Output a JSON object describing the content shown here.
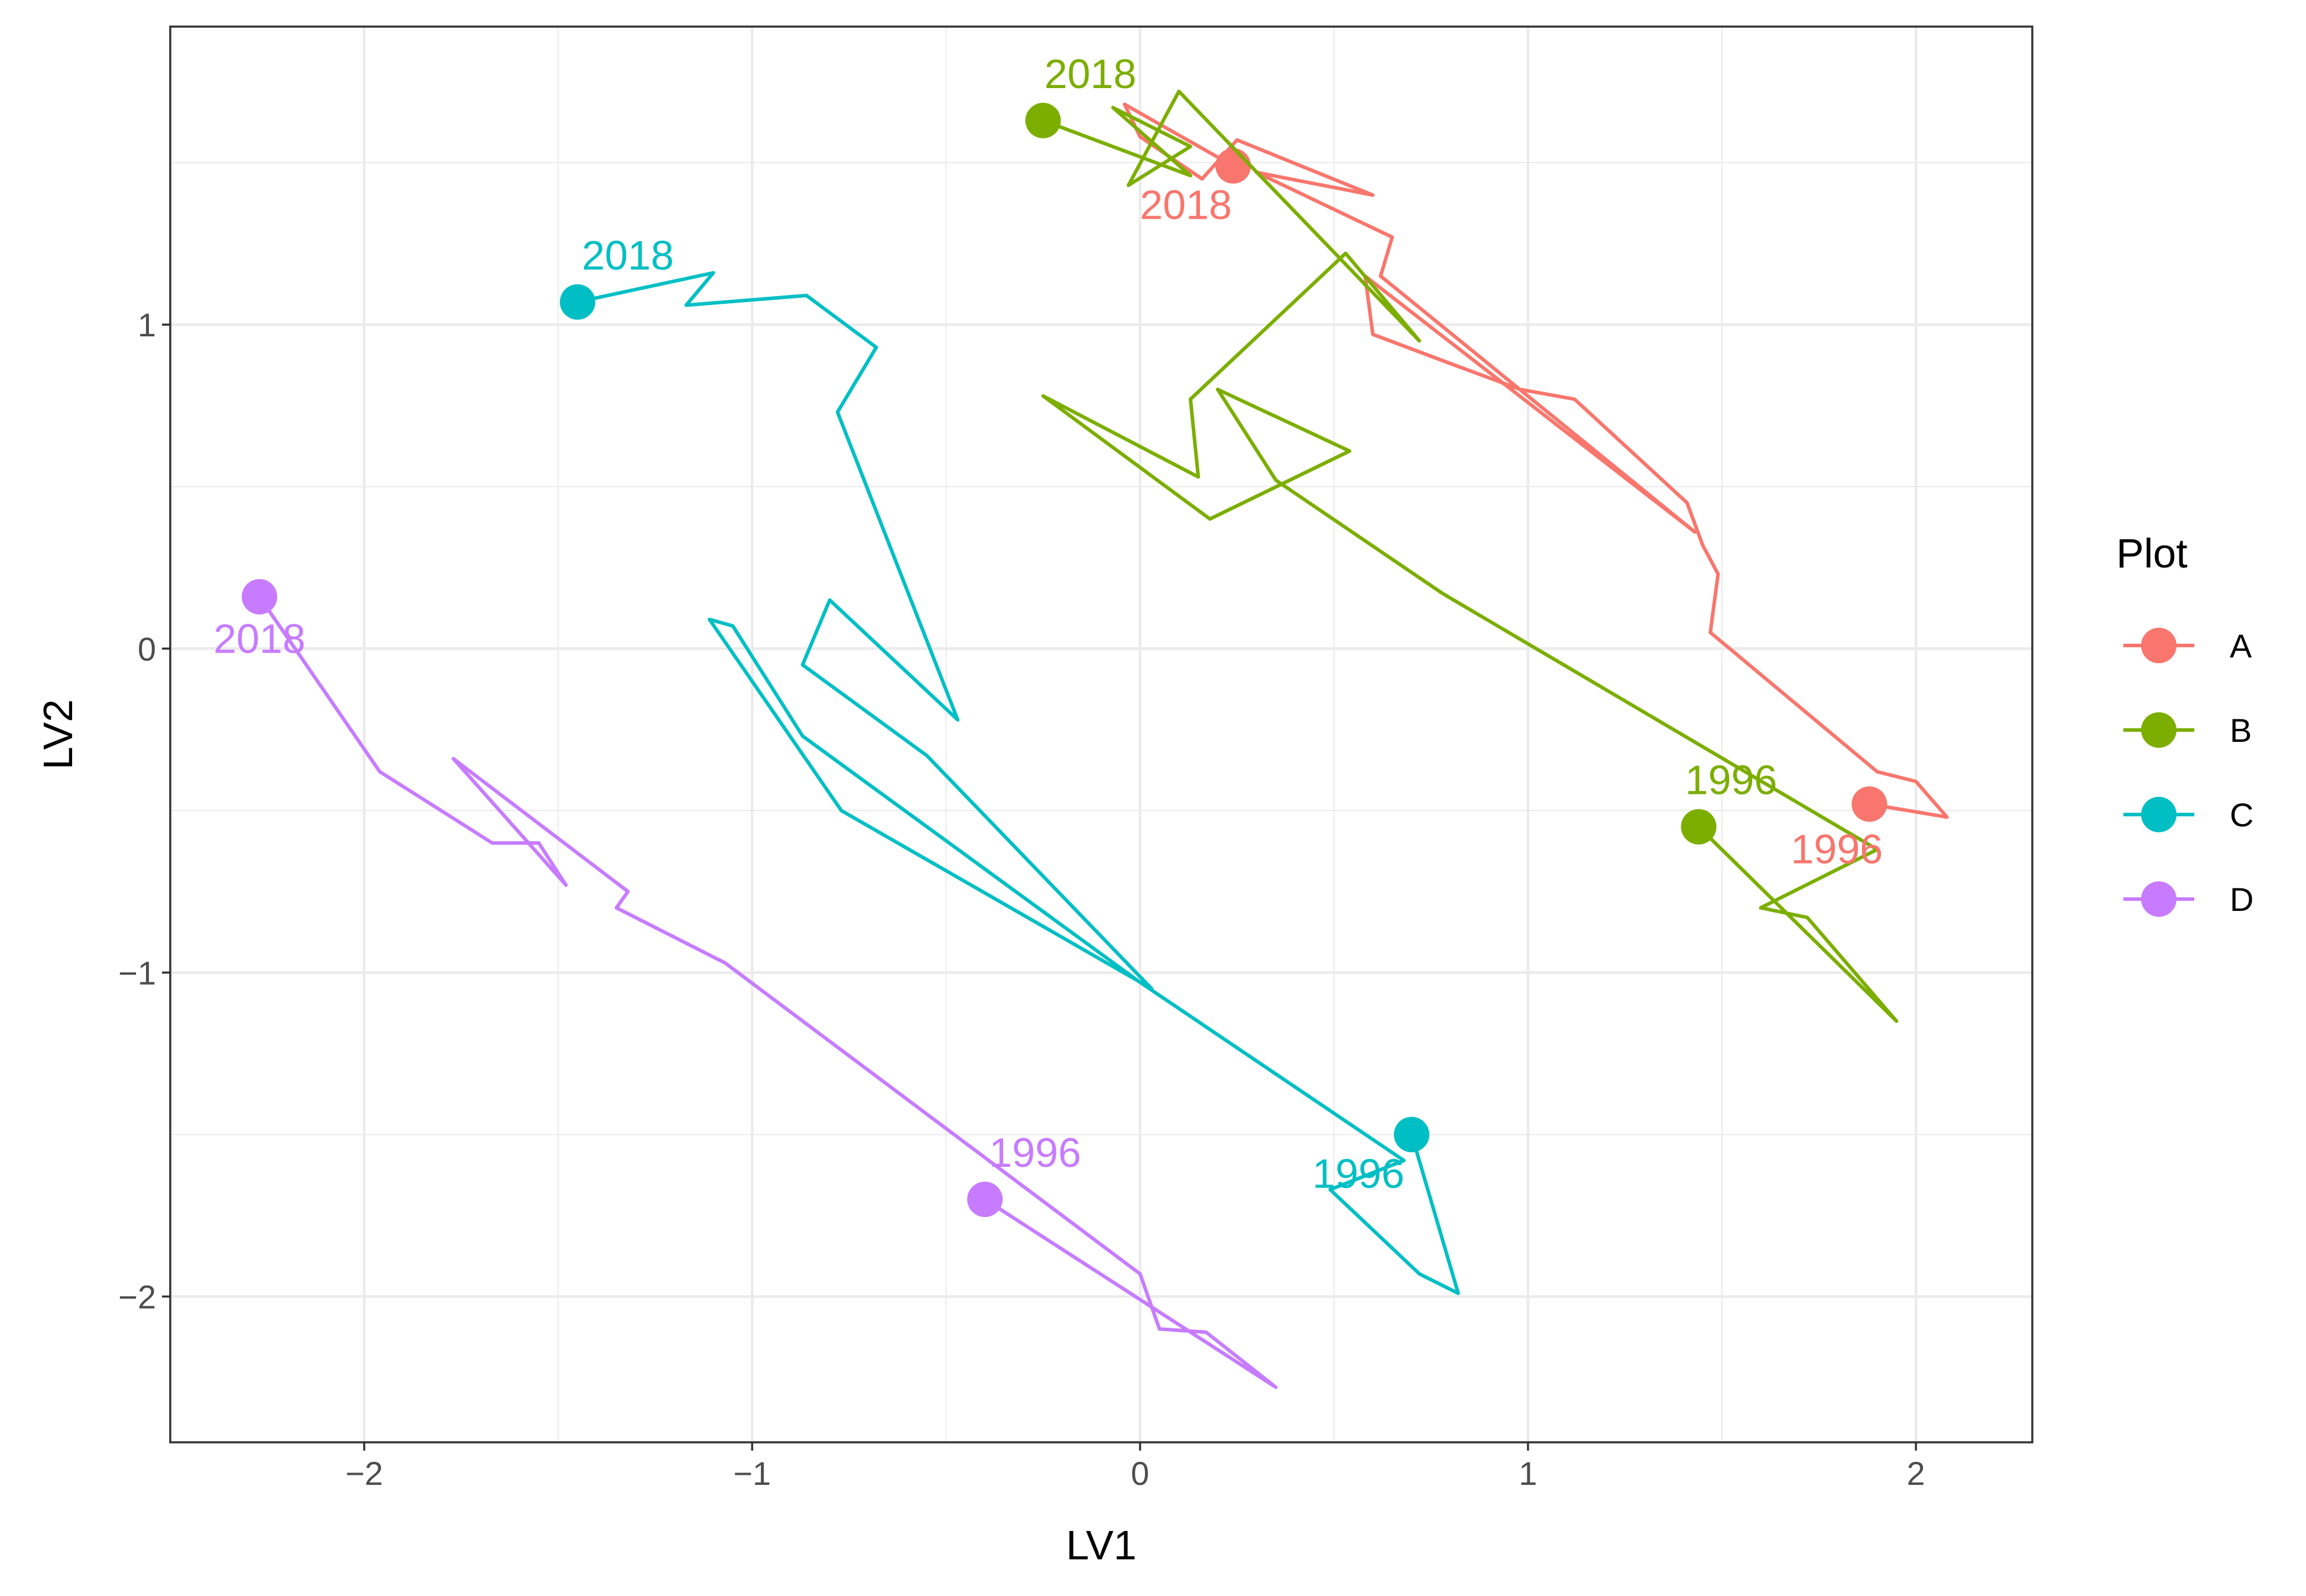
{
  "chart_data": {
    "type": "line",
    "title": "",
    "xlabel": "LV1",
    "ylabel": "LV2",
    "xlim": [
      -2.5,
      2.3
    ],
    "ylim": [
      -2.45,
      1.92
    ],
    "x_ticks": [
      -2,
      -1,
      0,
      1,
      2
    ],
    "y_ticks": [
      -2,
      -1,
      0,
      1
    ],
    "x_tick_labels": [
      "−2",
      "−1",
      "0",
      "1",
      "2"
    ],
    "y_tick_labels": [
      "−2",
      "−1",
      "0",
      "1"
    ],
    "grid": true,
    "legend": {
      "title": "Plot",
      "placement": "right",
      "entries": [
        "A",
        "B",
        "C",
        "D"
      ]
    },
    "series": [
      {
        "name": "A",
        "color": "#F8766D",
        "start_year": "1996",
        "end_year": "2018",
        "points": [
          [
            1.88,
            -0.48
          ],
          [
            2.08,
            -0.52
          ],
          [
            2.0,
            -0.41
          ],
          [
            1.9,
            -0.38
          ],
          [
            1.47,
            0.05
          ],
          [
            1.49,
            0.23
          ],
          [
            1.45,
            0.32
          ],
          [
            1.41,
            0.45
          ],
          [
            1.12,
            0.77
          ],
          [
            0.98,
            0.8
          ],
          [
            0.8,
            0.88
          ],
          [
            0.6,
            0.97
          ],
          [
            0.58,
            1.15
          ],
          [
            1.43,
            0.36
          ],
          [
            0.62,
            1.15
          ],
          [
            0.65,
            1.27
          ],
          [
            0.3,
            1.47
          ],
          [
            0.6,
            1.4
          ],
          [
            0.25,
            1.57
          ],
          [
            0.16,
            1.45
          ],
          [
            0.0,
            1.58
          ],
          [
            -0.04,
            1.68
          ],
          [
            0.24,
            1.49
          ]
        ]
      },
      {
        "name": "B",
        "color": "#7CAE00",
        "start_year": "1996",
        "end_year": "2018",
        "points": [
          [
            1.44,
            -0.55
          ],
          [
            1.95,
            -1.15
          ],
          [
            1.72,
            -0.83
          ],
          [
            1.6,
            -0.8
          ],
          [
            1.9,
            -0.62
          ],
          [
            0.78,
            0.17
          ],
          [
            0.35,
            0.52
          ],
          [
            0.2,
            0.8
          ],
          [
            0.54,
            0.61
          ],
          [
            0.18,
            0.4
          ],
          [
            -0.25,
            0.78
          ],
          [
            0.15,
            0.53
          ],
          [
            0.13,
            0.77
          ],
          [
            0.53,
            1.22
          ],
          [
            0.72,
            0.95
          ],
          [
            0.1,
            1.72
          ],
          [
            -0.03,
            1.43
          ],
          [
            0.13,
            1.55
          ],
          [
            -0.07,
            1.67
          ],
          [
            0.13,
            1.46
          ],
          [
            -0.25,
            1.63
          ]
        ]
      },
      {
        "name": "C",
        "color": "#00BFC4",
        "start_year": "1996",
        "end_year": "2018",
        "points": [
          [
            0.7,
            -1.5
          ],
          [
            0.82,
            -1.99
          ],
          [
            0.72,
            -1.93
          ],
          [
            0.49,
            -1.67
          ],
          [
            0.68,
            -1.58
          ],
          [
            0.0,
            -1.03
          ],
          [
            -0.87,
            -0.27
          ],
          [
            -1.05,
            0.07
          ],
          [
            -1.11,
            0.09
          ],
          [
            -0.77,
            -0.5
          ],
          [
            0.03,
            -1.05
          ],
          [
            -0.55,
            -0.33
          ],
          [
            -0.87,
            -0.05
          ],
          [
            -0.8,
            0.15
          ],
          [
            -0.47,
            -0.22
          ],
          [
            -0.78,
            0.73
          ],
          [
            -0.68,
            0.93
          ],
          [
            -0.86,
            1.09
          ],
          [
            -1.17,
            1.06
          ],
          [
            -1.1,
            1.16
          ],
          [
            -1.45,
            1.07
          ]
        ]
      },
      {
        "name": "D",
        "color": "#C77CFF",
        "start_year": "1996",
        "end_year": "2018",
        "points": [
          [
            -0.4,
            -1.7
          ],
          [
            0.35,
            -2.28
          ],
          [
            0.17,
            -2.11
          ],
          [
            0.05,
            -2.1
          ],
          [
            0.0,
            -1.93
          ],
          [
            -1.07,
            -0.97
          ],
          [
            -1.35,
            -0.8
          ],
          [
            -1.32,
            -0.75
          ],
          [
            -1.77,
            -0.34
          ],
          [
            -1.48,
            -0.73
          ],
          [
            -1.55,
            -0.6
          ],
          [
            -1.67,
            -0.6
          ],
          [
            -1.96,
            -0.38
          ],
          [
            -2.27,
            0.16
          ]
        ]
      }
    ]
  }
}
